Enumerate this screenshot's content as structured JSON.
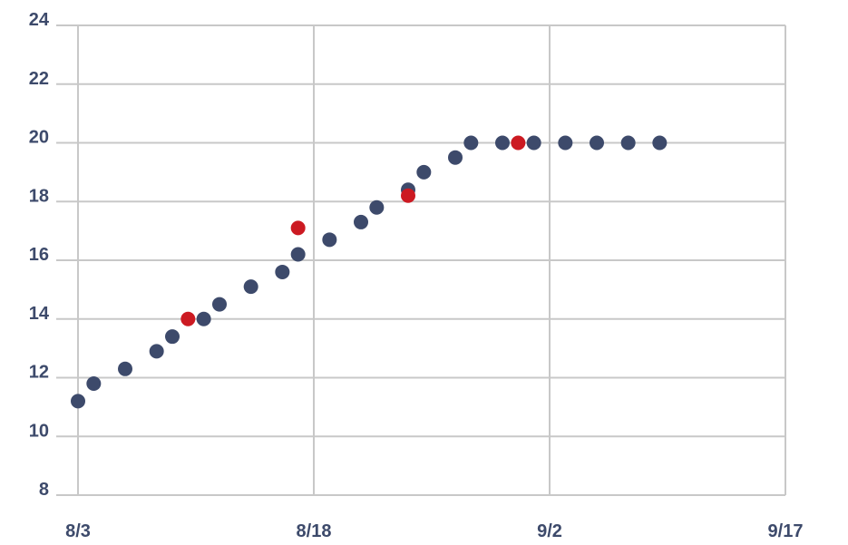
{
  "chart_data": {
    "type": "scatter",
    "title": "",
    "xlabel": "",
    "ylabel": "",
    "x_ticks": [
      "8/3",
      "8/18",
      "9/2",
      "9/17"
    ],
    "y_ticks": [
      "8",
      "10",
      "12",
      "14",
      "16",
      "18",
      "20",
      "22",
      "24"
    ],
    "xlim": [
      "8/3",
      "9/17"
    ],
    "ylim": [
      8,
      24
    ],
    "grid": true,
    "series": [
      {
        "color": "#3d4a6b",
        "points": [
          {
            "x": "8/3",
            "y": 11.2
          },
          {
            "x": "8/4",
            "y": 11.8
          },
          {
            "x": "8/6",
            "y": 12.3
          },
          {
            "x": "8/8",
            "y": 12.9
          },
          {
            "x": "8/9",
            "y": 13.4
          },
          {
            "x": "8/11",
            "y": 14.0
          },
          {
            "x": "8/12",
            "y": 14.5
          },
          {
            "x": "8/14",
            "y": 15.1
          },
          {
            "x": "8/16",
            "y": 15.6
          },
          {
            "x": "8/17",
            "y": 16.2
          },
          {
            "x": "8/19",
            "y": 16.7
          },
          {
            "x": "8/21",
            "y": 17.3
          },
          {
            "x": "8/22",
            "y": 17.8
          },
          {
            "x": "8/24",
            "y": 18.4
          },
          {
            "x": "8/25",
            "y": 19.0
          },
          {
            "x": "8/27",
            "y": 19.5
          },
          {
            "x": "8/28",
            "y": 20.0
          },
          {
            "x": "8/30",
            "y": 20.0
          },
          {
            "x": "9/1",
            "y": 20.0
          },
          {
            "x": "9/3",
            "y": 20.0
          },
          {
            "x": "9/5",
            "y": 20.0
          },
          {
            "x": "9/7",
            "y": 20.0
          },
          {
            "x": "9/9",
            "y": 20.0
          }
        ]
      },
      {
        "color": "#cc1a22",
        "points": [
          {
            "x": "8/10",
            "y": 14.0
          },
          {
            "x": "8/17",
            "y": 17.1
          },
          {
            "x": "8/24",
            "y": 18.2
          },
          {
            "x": "8/31",
            "y": 20.0
          }
        ]
      }
    ]
  }
}
